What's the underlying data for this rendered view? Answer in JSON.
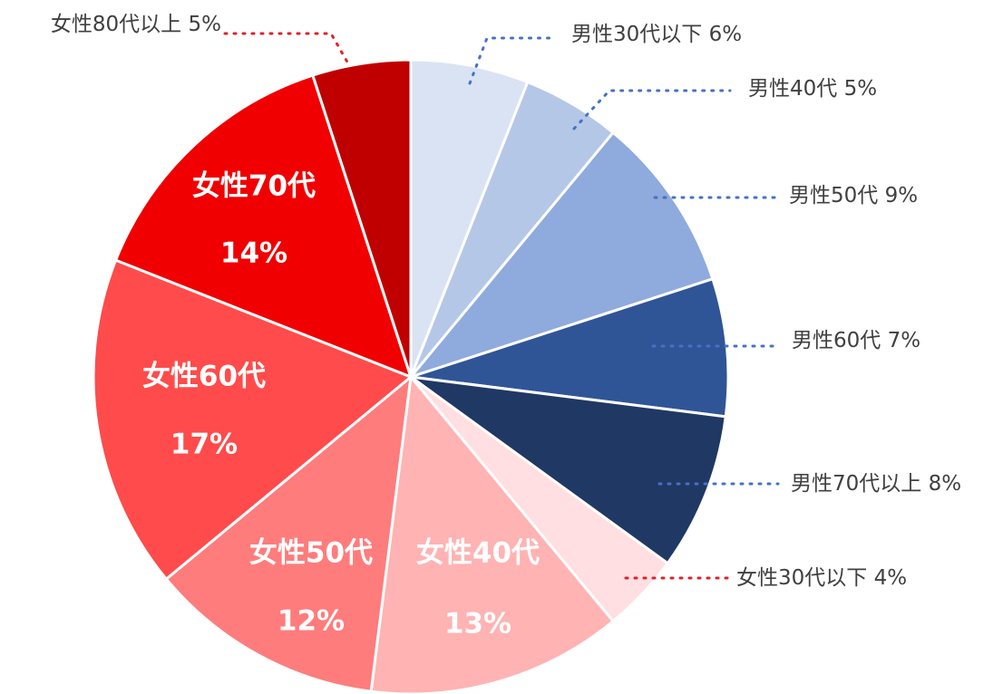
{
  "chart_data": {
    "type": "pie",
    "categories": [
      "男性30代以下",
      "男性40代",
      "男性50代",
      "男性60代",
      "男性70代以上",
      "女性30代以下",
      "女性40代",
      "女性50代",
      "女性60代",
      "女性70代",
      "女性80代以上"
    ],
    "values": [
      6,
      5,
      9,
      7,
      8,
      4,
      13,
      12,
      17,
      14,
      5
    ],
    "value_labels": [
      "6%",
      "5%",
      "9%",
      "7%",
      "8%",
      "4%",
      "13%",
      "12%",
      "17%",
      "14%",
      "5%"
    ],
    "colors": [
      "#dae3f3",
      "#b4c7e7",
      "#8faadc",
      "#2f5597",
      "#203864",
      "#ffdfe1",
      "#ffb3b3",
      "#ff7c7c",
      "#ff4b4b",
      "#f00000",
      "#c00000"
    ]
  }
}
